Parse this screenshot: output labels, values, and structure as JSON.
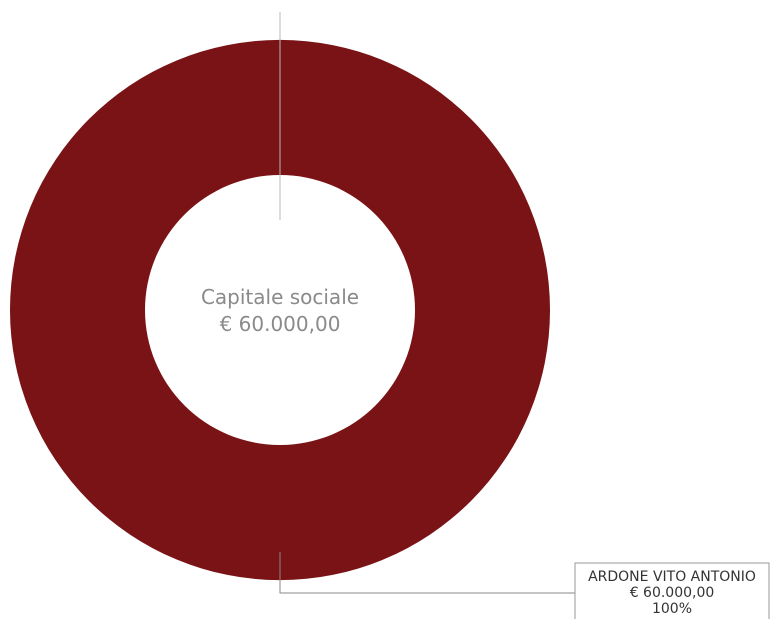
{
  "chart_data": {
    "type": "pie",
    "center_label": {
      "title": "Capitale sociale",
      "value": "€ 60.000,00"
    },
    "slices": [
      {
        "name": "ARDONE VITO ANTONIO",
        "amount_label": "€ 60.000,00",
        "percent_label": "100%",
        "value": 60000,
        "percent": 100,
        "color": "#7a1316"
      }
    ],
    "total": 60000
  }
}
